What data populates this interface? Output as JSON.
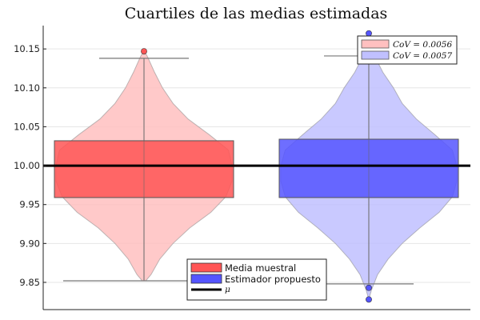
{
  "chart_data": {
    "type": "violin-box",
    "title": "Cuartiles de las medias estimadas",
    "xlabel": "",
    "ylabel": "",
    "ylim": [
      9.815,
      10.18
    ],
    "yticks": [
      9.85,
      9.9,
      9.95,
      10.0,
      10.05,
      10.1,
      10.15
    ],
    "ytick_labels": [
      "9.85",
      "9.90",
      "9.95",
      "10.00",
      "10.05",
      "10.10",
      "10.15"
    ],
    "grid": true,
    "series": [
      {
        "name": "Media muestral",
        "cov_label": "CoV = 0.0056",
        "violin_color": "#ffc0c0",
        "box_color": "#ff5555",
        "q1": 9.959,
        "median": 10.0,
        "q3": 10.032,
        "whisker_low": 9.852,
        "whisker_high": 10.138,
        "outliers": [
          10.147
        ],
        "violin_profile": [
          [
            9.852,
            0.02
          ],
          [
            9.86,
            0.08
          ],
          [
            9.88,
            0.18
          ],
          [
            9.9,
            0.33
          ],
          [
            9.92,
            0.52
          ],
          [
            9.94,
            0.76
          ],
          [
            9.96,
            0.93
          ],
          [
            9.98,
            1.0
          ],
          [
            10.0,
            1.0
          ],
          [
            10.02,
            0.96
          ],
          [
            10.04,
            0.74
          ],
          [
            10.06,
            0.5
          ],
          [
            10.08,
            0.33
          ],
          [
            10.1,
            0.21
          ],
          [
            10.12,
            0.12
          ],
          [
            10.14,
            0.04
          ],
          [
            10.148,
            0.0
          ]
        ]
      },
      {
        "name": "Estimador propuesto",
        "cov_label": "CoV = 0.0057",
        "violin_color": "#c0c0ff",
        "box_color": "#5555ff",
        "q1": 9.959,
        "median": 10.0,
        "q3": 10.034,
        "whisker_low": 9.848,
        "whisker_high": 10.141,
        "outliers": [
          10.17,
          9.843,
          9.828
        ],
        "violin_profile": [
          [
            9.828,
            0.0
          ],
          [
            9.84,
            0.03
          ],
          [
            9.86,
            0.1
          ],
          [
            9.88,
            0.22
          ],
          [
            9.9,
            0.38
          ],
          [
            9.92,
            0.58
          ],
          [
            9.94,
            0.8
          ],
          [
            9.96,
            0.95
          ],
          [
            9.98,
            1.0
          ],
          [
            10.0,
            1.0
          ],
          [
            10.02,
            0.95
          ],
          [
            10.04,
            0.75
          ],
          [
            10.06,
            0.54
          ],
          [
            10.08,
            0.38
          ],
          [
            10.1,
            0.28
          ],
          [
            10.12,
            0.16
          ],
          [
            10.14,
            0.07
          ],
          [
            10.16,
            0.02
          ],
          [
            10.17,
            0.0
          ]
        ]
      }
    ],
    "mu_line": {
      "value": 10.0,
      "label": "μ"
    },
    "legend_top": {
      "position": "top-right"
    },
    "legend_bottom": {
      "position": "bottom-center"
    }
  }
}
